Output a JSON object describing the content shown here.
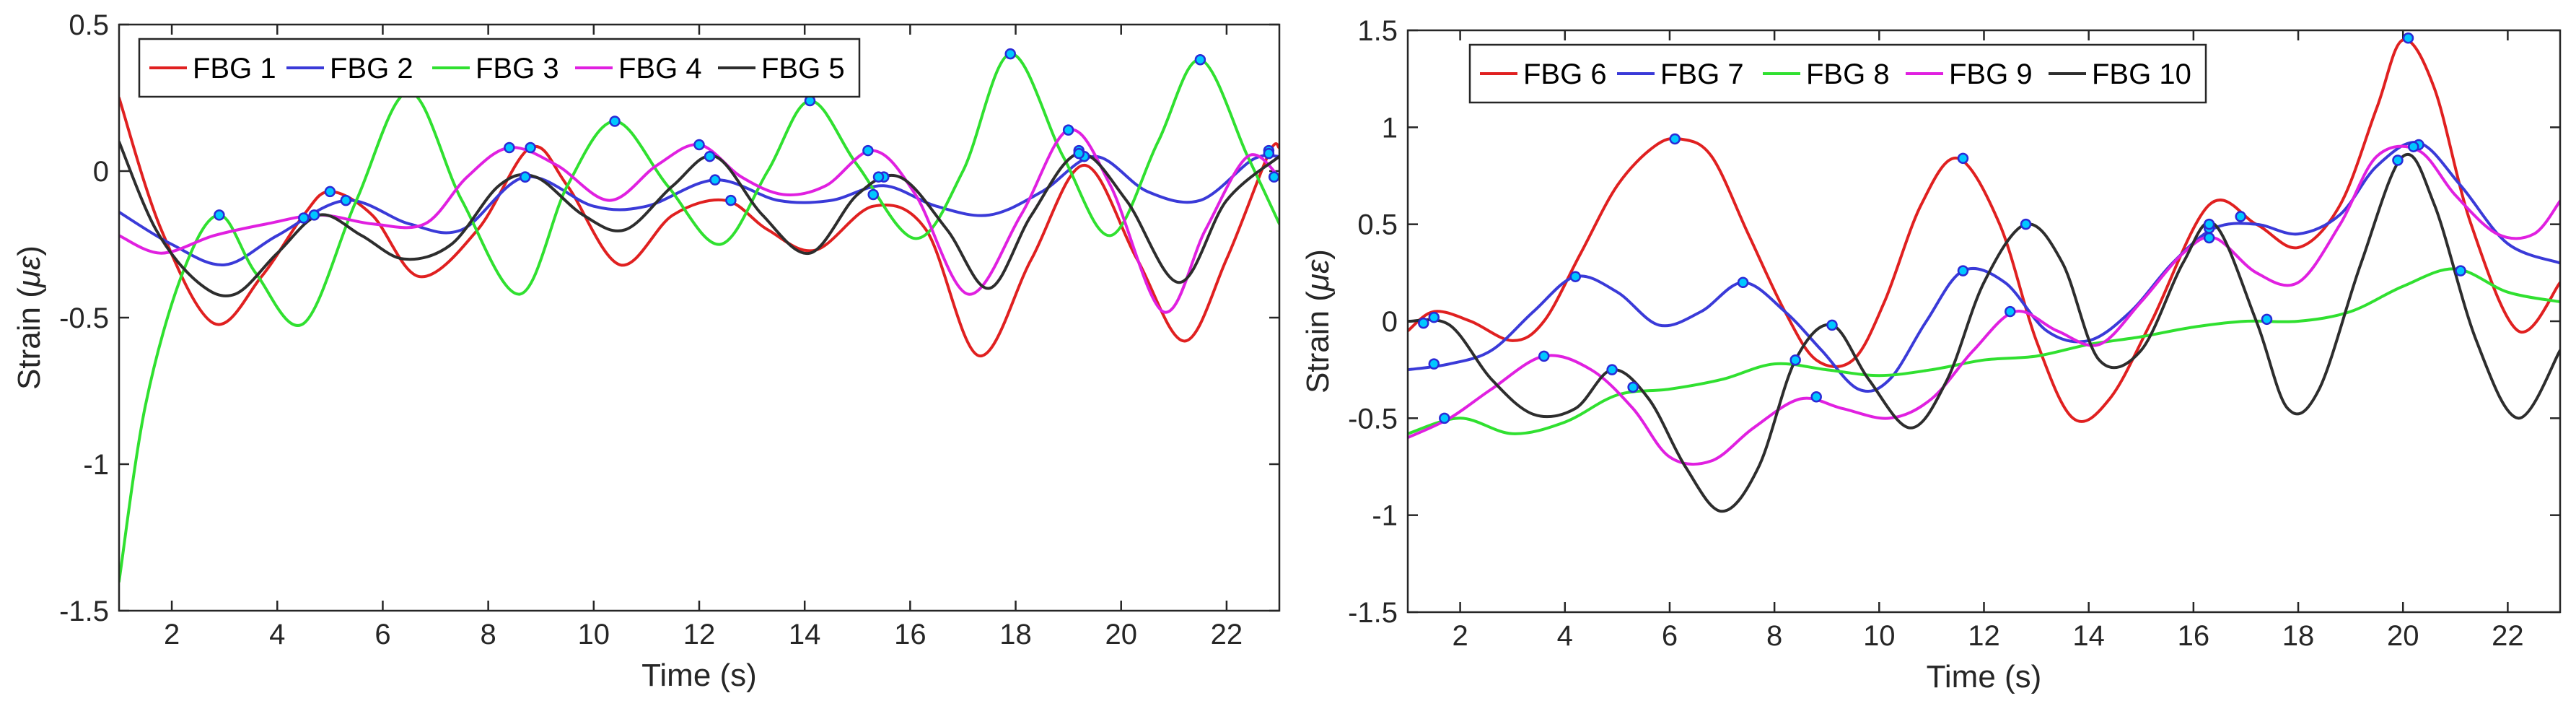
{
  "chart_data": [
    {
      "type": "line",
      "title": "",
      "xlabel": "Time (s)",
      "ylabel_text": "Strain (",
      "ylabel_unit": "με",
      "ylabel_close": ")",
      "xlim": [
        1,
        23
      ],
      "ylim": [
        -1.5,
        0.5
      ],
      "xticks": [
        2,
        4,
        6,
        8,
        10,
        12,
        14,
        16,
        18,
        20,
        22
      ],
      "xtick_labels": [
        "2",
        "4",
        "6",
        "8",
        "10",
        "12",
        "14",
        "16",
        "18",
        "20",
        "22"
      ],
      "yticks": [
        -1.5,
        -1,
        -0.5,
        0,
        0.5
      ],
      "ytick_labels": [
        "-1.5",
        "-1",
        "-0.5",
        "0",
        "0.5"
      ],
      "legend_position": "top-left",
      "series": [
        {
          "name": "FBG 1",
          "color": "#e02020",
          "x": [
            1,
            1.8,
            2.8,
            3.7,
            4.5,
            5.0,
            5.8,
            6.7,
            7.8,
            8.8,
            9.5,
            10.5,
            11.5,
            12.5,
            13.3,
            14.2,
            15.3,
            16.3,
            17.3,
            18.3,
            19.3,
            20.3,
            21.2,
            22,
            22.8,
            23
          ],
          "y": [
            0.25,
            -0.2,
            -0.52,
            -0.36,
            -0.15,
            -0.07,
            -0.15,
            -0.36,
            -0.2,
            0.08,
            -0.05,
            -0.32,
            -0.15,
            -0.1,
            -0.2,
            -0.27,
            -0.12,
            -0.2,
            -0.63,
            -0.3,
            0.02,
            -0.3,
            -0.58,
            -0.3,
            0.06,
            0.08
          ],
          "markers": [
            [
              4.7,
              -0.15
            ],
            [
              5.0,
              -0.07
            ],
            [
              8.8,
              0.08
            ],
            [
              12.6,
              -0.1
            ],
            [
              15.3,
              -0.08
            ],
            [
              19.2,
              0.07
            ],
            [
              22.8,
              0.07
            ]
          ]
        },
        {
          "name": "FBG 2",
          "color": "#3a3ad8",
          "x": [
            1,
            2,
            3,
            4,
            5.3,
            6.5,
            7.5,
            8.7,
            10,
            11,
            12.3,
            13.5,
            14.5,
            15.5,
            16.5,
            17.5,
            18.5,
            19.5,
            20.5,
            21.5,
            22.5,
            23
          ],
          "y": [
            -0.14,
            -0.25,
            -0.32,
            -0.22,
            -0.1,
            -0.18,
            -0.2,
            -0.02,
            -0.12,
            -0.12,
            -0.03,
            -0.1,
            -0.1,
            -0.05,
            -0.12,
            -0.15,
            -0.07,
            0.05,
            -0.07,
            -0.1,
            0.04,
            0.05
          ],
          "markers": [
            [
              5.3,
              -0.1
            ],
            [
              8.7,
              -0.02
            ],
            [
              12.3,
              -0.03
            ],
            [
              15.5,
              -0.02
            ],
            [
              19.3,
              0.05
            ]
          ]
        },
        {
          "name": "FBG 3",
          "color": "#30e030",
          "x": [
            1,
            1.5,
            2.2,
            2.9,
            3.6,
            4.5,
            5.5,
            6.5,
            7.5,
            8.6,
            9.5,
            10.4,
            11.4,
            12.4,
            13.3,
            14.1,
            15,
            16.1,
            17,
            17.9,
            18.9,
            19.8,
            20.7,
            21.5,
            22.4,
            23
          ],
          "y": [
            -1.4,
            -0.8,
            -0.35,
            -0.15,
            -0.35,
            -0.52,
            -0.1,
            0.27,
            -0.1,
            -0.42,
            -0.05,
            0.17,
            -0.05,
            -0.25,
            0.0,
            0.24,
            0.02,
            -0.23,
            0.0,
            0.4,
            0.05,
            -0.22,
            0.1,
            0.38,
            0.05,
            -0.18
          ],
          "markers": [
            [
              2.9,
              -0.15
            ],
            [
              6.5,
              0.27
            ],
            [
              10.4,
              0.17
            ],
            [
              14.1,
              0.24
            ],
            [
              17.9,
              0.4
            ],
            [
              21.5,
              0.38
            ]
          ]
        },
        {
          "name": "FBG 4",
          "color": "#e020e0",
          "x": [
            1,
            1.8,
            2.8,
            3.8,
            4.8,
            5.8,
            6.8,
            7.6,
            8.4,
            9.3,
            10.3,
            11.2,
            12.0,
            12.8,
            13.6,
            14.4,
            15.3,
            16.1,
            17.1,
            18.1,
            19.0,
            19.8,
            20.8,
            21.6,
            22.4,
            23
          ],
          "y": [
            -0.22,
            -0.28,
            -0.22,
            -0.18,
            -0.15,
            -0.18,
            -0.18,
            -0.02,
            0.08,
            0.02,
            -0.1,
            0.02,
            0.09,
            -0.02,
            -0.08,
            -0.05,
            0.07,
            -0.08,
            -0.42,
            -0.15,
            0.14,
            -0.05,
            -0.48,
            -0.2,
            0.05,
            -0.02
          ],
          "markers": [
            [
              4.5,
              -0.16
            ],
            [
              8.4,
              0.08
            ],
            [
              12.0,
              0.09
            ],
            [
              15.2,
              0.07
            ],
            [
              19.0,
              0.14
            ],
            [
              22.9,
              -0.02
            ]
          ]
        },
        {
          "name": "FBG 5",
          "color": "#2d2d2d",
          "x": [
            1,
            1.7,
            2.5,
            3.2,
            4.0,
            4.8,
            5.6,
            6.4,
            7.3,
            8.2,
            8.9,
            9.8,
            10.6,
            11.5,
            12.3,
            13.2,
            14.1,
            15.0,
            15.8,
            16.7,
            17.5,
            18.3,
            19.2,
            20.1,
            21.1,
            22.0,
            23
          ],
          "y": [
            0.1,
            -0.2,
            -0.38,
            -0.42,
            -0.28,
            -0.15,
            -0.22,
            -0.3,
            -0.25,
            -0.05,
            -0.02,
            -0.15,
            -0.2,
            -0.05,
            0.05,
            -0.15,
            -0.28,
            -0.08,
            -0.02,
            -0.2,
            -0.4,
            -0.15,
            0.06,
            -0.1,
            -0.38,
            -0.1,
            0.05
          ],
          "markers": [
            [
              8.7,
              -0.02
            ],
            [
              12.2,
              0.05
            ],
            [
              15.4,
              -0.02
            ],
            [
              19.2,
              0.06
            ],
            [
              22.8,
              0.06
            ]
          ]
        }
      ]
    },
    {
      "type": "line",
      "title": "",
      "xlabel": "Time (s)",
      "ylabel_text": "Strain (",
      "ylabel_unit": "με",
      "ylabel_close": ")",
      "xlim": [
        1,
        23
      ],
      "ylim": [
        -1.5,
        1.5
      ],
      "xticks": [
        2,
        4,
        6,
        8,
        10,
        12,
        14,
        16,
        18,
        20,
        22
      ],
      "xtick_labels": [
        "2",
        "4",
        "6",
        "8",
        "10",
        "12",
        "14",
        "16",
        "18",
        "20",
        "22"
      ],
      "yticks": [
        -1.5,
        -1,
        -0.5,
        0,
        0.5,
        1,
        1.5
      ],
      "ytick_labels": [
        "-1.5",
        "-1",
        "-0.5",
        "0",
        "0.5",
        "1",
        "1.5"
      ],
      "legend_position": "top-left",
      "series": [
        {
          "name": "FBG 6",
          "color": "#e02020",
          "x": [
            1,
            1.5,
            2.2,
            3.0,
            3.6,
            4.3,
            5.0,
            5.7,
            6.2,
            6.8,
            7.5,
            8.2,
            8.8,
            9.5,
            10.1,
            10.8,
            11.5,
            12.3,
            13.0,
            13.7,
            14.4,
            15.2,
            16.3,
            17.2,
            18.0,
            18.8,
            19.5,
            20.0,
            20.6,
            21.3,
            22.2,
            23
          ],
          "y": [
            -0.05,
            0.05,
            0.0,
            -0.1,
            0.0,
            0.35,
            0.7,
            0.9,
            0.94,
            0.85,
            0.45,
            0.05,
            -0.2,
            -0.2,
            0.1,
            0.6,
            0.84,
            0.5,
            -0.1,
            -0.5,
            -0.4,
            0.0,
            0.6,
            0.5,
            0.38,
            0.6,
            1.1,
            1.45,
            1.2,
            0.5,
            -0.05,
            0.2
          ],
          "markers": [
            [
              1.5,
              0.02
            ],
            [
              6.1,
              0.94
            ],
            [
              11.6,
              0.84
            ],
            [
              20.1,
              1.46
            ]
          ]
        },
        {
          "name": "FBG 7",
          "color": "#3a3ad8",
          "x": [
            1,
            1.8,
            2.6,
            3.4,
            4.2,
            5.0,
            5.8,
            6.6,
            7.4,
            8.2,
            8.9,
            9.6,
            10.2,
            10.9,
            11.6,
            12.4,
            13.2,
            14.0,
            14.8,
            15.6,
            16.4,
            17.2,
            18.0,
            18.8,
            19.5,
            20.3,
            21.1,
            22.0,
            23
          ],
          "y": [
            -0.25,
            -0.22,
            -0.15,
            0.05,
            0.23,
            0.15,
            -0.02,
            0.05,
            0.2,
            0.05,
            -0.15,
            -0.35,
            -0.3,
            0.0,
            0.26,
            0.2,
            -0.05,
            -0.1,
            0.05,
            0.3,
            0.48,
            0.5,
            0.45,
            0.55,
            0.8,
            0.92,
            0.7,
            0.4,
            0.3
          ],
          "markers": [
            [
              1.5,
              -0.22
            ],
            [
              4.2,
              0.23
            ],
            [
              7.4,
              0.2
            ],
            [
              11.6,
              0.26
            ],
            [
              16.3,
              0.48
            ],
            [
              16.9,
              0.54
            ],
            [
              20.3,
              0.91
            ]
          ]
        },
        {
          "name": "FBG 8",
          "color": "#30e030",
          "x": [
            1,
            2,
            3,
            4,
            5,
            6,
            7,
            8,
            9,
            10,
            11,
            12,
            13,
            14,
            15,
            16,
            17,
            18,
            19,
            20,
            21,
            22,
            23
          ],
          "y": [
            -0.58,
            -0.5,
            -0.58,
            -0.52,
            -0.38,
            -0.35,
            -0.3,
            -0.22,
            -0.25,
            -0.28,
            -0.25,
            -0.2,
            -0.18,
            -0.12,
            -0.08,
            -0.03,
            0.0,
            0.0,
            0.05,
            0.18,
            0.27,
            0.15,
            0.1
          ],
          "markers": [
            [
              1.7,
              -0.5
            ],
            [
              5.3,
              -0.34
            ],
            [
              8.4,
              -0.2
            ],
            [
              17.4,
              0.01
            ],
            [
              21.1,
              0.26
            ]
          ]
        },
        {
          "name": "FBG 9",
          "color": "#e020e0",
          "x": [
            1,
            1.8,
            2.6,
            3.6,
            4.5,
            5.3,
            6.0,
            6.8,
            7.6,
            8.5,
            9.3,
            10.2,
            11.0,
            11.8,
            12.6,
            13.4,
            14.2,
            15.0,
            15.8,
            16.4,
            17.2,
            18.0,
            18.8,
            19.5,
            20.3,
            21.0,
            21.8,
            22.5,
            23
          ],
          "y": [
            -0.6,
            -0.5,
            -0.35,
            -0.18,
            -0.25,
            -0.45,
            -0.7,
            -0.72,
            -0.55,
            -0.4,
            -0.45,
            -0.5,
            -0.4,
            -0.15,
            0.05,
            -0.05,
            -0.12,
            0.1,
            0.35,
            0.43,
            0.25,
            0.2,
            0.5,
            0.85,
            0.88,
            0.65,
            0.45,
            0.45,
            0.62
          ],
          "markers": [
            [
              3.6,
              -0.18
            ],
            [
              8.8,
              -0.39
            ],
            [
              12.5,
              0.05
            ],
            [
              16.3,
              0.43
            ],
            [
              20.2,
              0.9
            ]
          ]
        },
        {
          "name": "FBG 10",
          "color": "#2d2d2d",
          "x": [
            1,
            1.8,
            2.6,
            3.4,
            4.2,
            4.9,
            5.6,
            6.3,
            7.0,
            7.7,
            8.4,
            9.1,
            9.8,
            10.6,
            11.3,
            12.0,
            12.8,
            13.5,
            14.2,
            15.0,
            15.8,
            16.4,
            17.2,
            17.8,
            18.4,
            19.2,
            20.0,
            20.6,
            21.4,
            22.2,
            23
          ],
          "y": [
            0.0,
            -0.02,
            -0.3,
            -0.48,
            -0.45,
            -0.25,
            -0.4,
            -0.75,
            -0.98,
            -0.75,
            -0.2,
            -0.02,
            -0.3,
            -0.55,
            -0.3,
            0.2,
            0.5,
            0.3,
            -0.2,
            -0.15,
            0.3,
            0.5,
            0.0,
            -0.45,
            -0.35,
            0.3,
            0.85,
            0.6,
            -0.1,
            -0.5,
            -0.15
          ],
          "markers": [
            [
              1.3,
              -0.01
            ],
            [
              4.9,
              -0.25
            ],
            [
              9.1,
              -0.02
            ],
            [
              12.8,
              0.5
            ],
            [
              16.3,
              0.5
            ],
            [
              19.9,
              0.83
            ]
          ]
        }
      ]
    }
  ]
}
